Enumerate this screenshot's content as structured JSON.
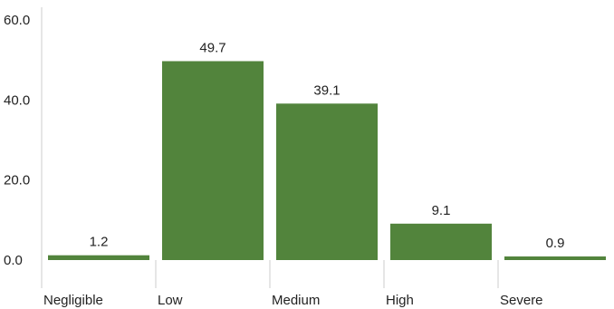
{
  "chart_data": {
    "type": "bar",
    "categories": [
      "Negligible",
      "Low",
      "Medium",
      "High",
      "Severe"
    ],
    "values": [
      1.2,
      49.7,
      39.1,
      9.1,
      0.9
    ],
    "data_labels": [
      "1.2",
      "49.7",
      "39.1",
      "9.1",
      "0.9"
    ],
    "y_ticks": [
      0,
      20,
      40,
      60
    ],
    "y_tick_labels": [
      "0.0",
      "20.0",
      "40.0",
      "60.0"
    ],
    "ylim": [
      0,
      60
    ],
    "grid": false,
    "legend": "none",
    "colors": {
      "bar": "#52843c",
      "axis": "#cccccc",
      "text": "#222222"
    }
  }
}
